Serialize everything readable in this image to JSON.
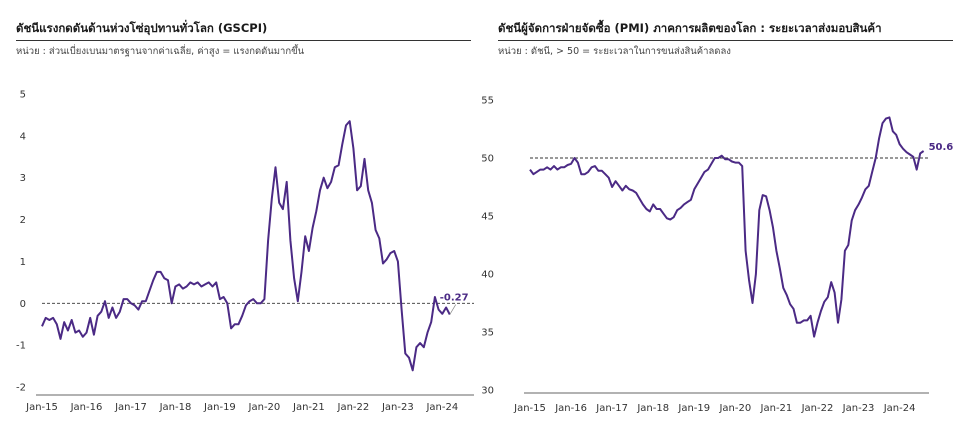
{
  "colors": {
    "line": "#4b2a85",
    "axis": "#333333",
    "reference": "#333333"
  },
  "chart_data": [
    {
      "type": "line",
      "title": "ดัชนีแรงกดดันด้านห่วงโซ่อุปทานทั่วโลก (GSCPI)",
      "subtitle": "หน่วย : ส่วนเบี่ยงเบนมาตรฐานจากค่าเฉลี่ย, ค่าสูง = แรงกดดันมากขึ้น",
      "ylim": [
        -2,
        5
      ],
      "yticks": [
        "5",
        "4",
        "3",
        "2",
        "1",
        "0",
        "-1",
        "-2"
      ],
      "ytick_values": [
        5,
        4,
        3,
        2,
        1,
        0,
        -1,
        -2
      ],
      "xticks": [
        "Jan-15",
        "Jan-16",
        "Jan-17",
        "Jan-18",
        "Jan-19",
        "Jan-20",
        "Jan-21",
        "Jan-22",
        "Jan-23",
        "Jan-24"
      ],
      "x_start": "2015-01",
      "reference_line": 0,
      "end_label": "-0.27",
      "series": [
        {
          "values": [
            -0.55,
            -0.35,
            -0.4,
            -0.35,
            -0.5,
            -0.85,
            -0.45,
            -0.65,
            -0.4,
            -0.7,
            -0.65,
            -0.8,
            -0.7,
            -0.35,
            -0.75,
            -0.3,
            -0.2,
            0.05,
            -0.35,
            -0.1,
            -0.35,
            -0.2,
            0.1,
            0.1,
            0.0,
            -0.05,
            -0.15,
            0.05,
            0.05,
            0.3,
            0.55,
            0.75,
            0.75,
            0.6,
            0.55,
            0.0,
            0.4,
            0.45,
            0.35,
            0.4,
            0.5,
            0.45,
            0.5,
            0.4,
            0.45,
            0.5,
            0.4,
            0.5,
            0.1,
            0.15,
            0.0,
            -0.6,
            -0.5,
            -0.5,
            -0.3,
            -0.05,
            0.05,
            0.1,
            0.0,
            0.0,
            0.1,
            1.5,
            2.5,
            3.25,
            2.4,
            2.25,
            2.9,
            1.5,
            0.6,
            0.05,
            0.75,
            1.6,
            1.25,
            1.8,
            2.2,
            2.7,
            3.0,
            2.75,
            2.9,
            3.25,
            3.3,
            3.8,
            4.25,
            4.35,
            3.7,
            2.7,
            2.8,
            3.45,
            2.7,
            2.4,
            1.75,
            1.55,
            0.95,
            1.05,
            1.2,
            1.25,
            1.0,
            -0.15,
            -1.2,
            -1.3,
            -1.6,
            -1.05,
            -0.95,
            -1.05,
            -0.7,
            -0.45,
            0.15,
            -0.15,
            -0.25,
            -0.1,
            -0.27
          ]
        }
      ]
    },
    {
      "type": "line",
      "title": "ดัชนีผู้จัดการฝ่ายจัดซื้อ (PMI) ภาคการผลิตของโลก : ระยะเวลาส่งมอบสินค้า",
      "subtitle": "หน่วย : ดัชนี, > 50 = ระยะเวลาในการขนส่งสินค้าลดลง",
      "ylim": [
        30,
        55
      ],
      "yticks": [
        "55",
        "50",
        "45",
        "40",
        "35",
        "30"
      ],
      "ytick_values": [
        55,
        50,
        45,
        40,
        35,
        30
      ],
      "xticks": [
        "Jan-15",
        "Jan-16",
        "Jan-17",
        "Jan-18",
        "Jan-19",
        "Jan-20",
        "Jan-21",
        "Jan-22",
        "Jan-23",
        "Jan-24"
      ],
      "x_start": "2015-01",
      "reference_line": 50,
      "end_label": "50.6",
      "series": [
        {
          "values": [
            49.0,
            48.6,
            48.8,
            49.0,
            49.0,
            49.2,
            49.0,
            49.3,
            49.0,
            49.2,
            49.2,
            49.4,
            49.5,
            50.0,
            49.6,
            48.6,
            48.6,
            48.8,
            49.2,
            49.3,
            48.9,
            48.9,
            48.6,
            48.3,
            47.5,
            48.0,
            47.6,
            47.2,
            47.6,
            47.3,
            47.2,
            47.0,
            46.5,
            46.0,
            45.6,
            45.4,
            46.0,
            45.6,
            45.6,
            45.2,
            44.8,
            44.7,
            44.9,
            45.5,
            45.7,
            46.0,
            46.2,
            46.4,
            47.3,
            47.8,
            48.3,
            48.8,
            49.0,
            49.5,
            50.0,
            50.0,
            50.2,
            49.9,
            49.9,
            49.7,
            49.6,
            49.6,
            49.3,
            42.0,
            39.5,
            37.5,
            40.0,
            45.5,
            46.8,
            46.7,
            45.5,
            44.0,
            42.0,
            40.5,
            38.8,
            38.2,
            37.4,
            37.0,
            35.8,
            35.8,
            36.0,
            36.0,
            36.4,
            34.6,
            35.8,
            36.8,
            37.6,
            38.0,
            39.3,
            38.4,
            35.8,
            37.8,
            42.0,
            42.5,
            44.6,
            45.5,
            46.0,
            46.6,
            47.3,
            47.6,
            48.8,
            50.0,
            51.7,
            53.0,
            53.4,
            53.5,
            52.3,
            52.0,
            51.2,
            50.8,
            50.5,
            50.3,
            50.1,
            49.0,
            50.4,
            50.6
          ]
        }
      ]
    }
  ]
}
